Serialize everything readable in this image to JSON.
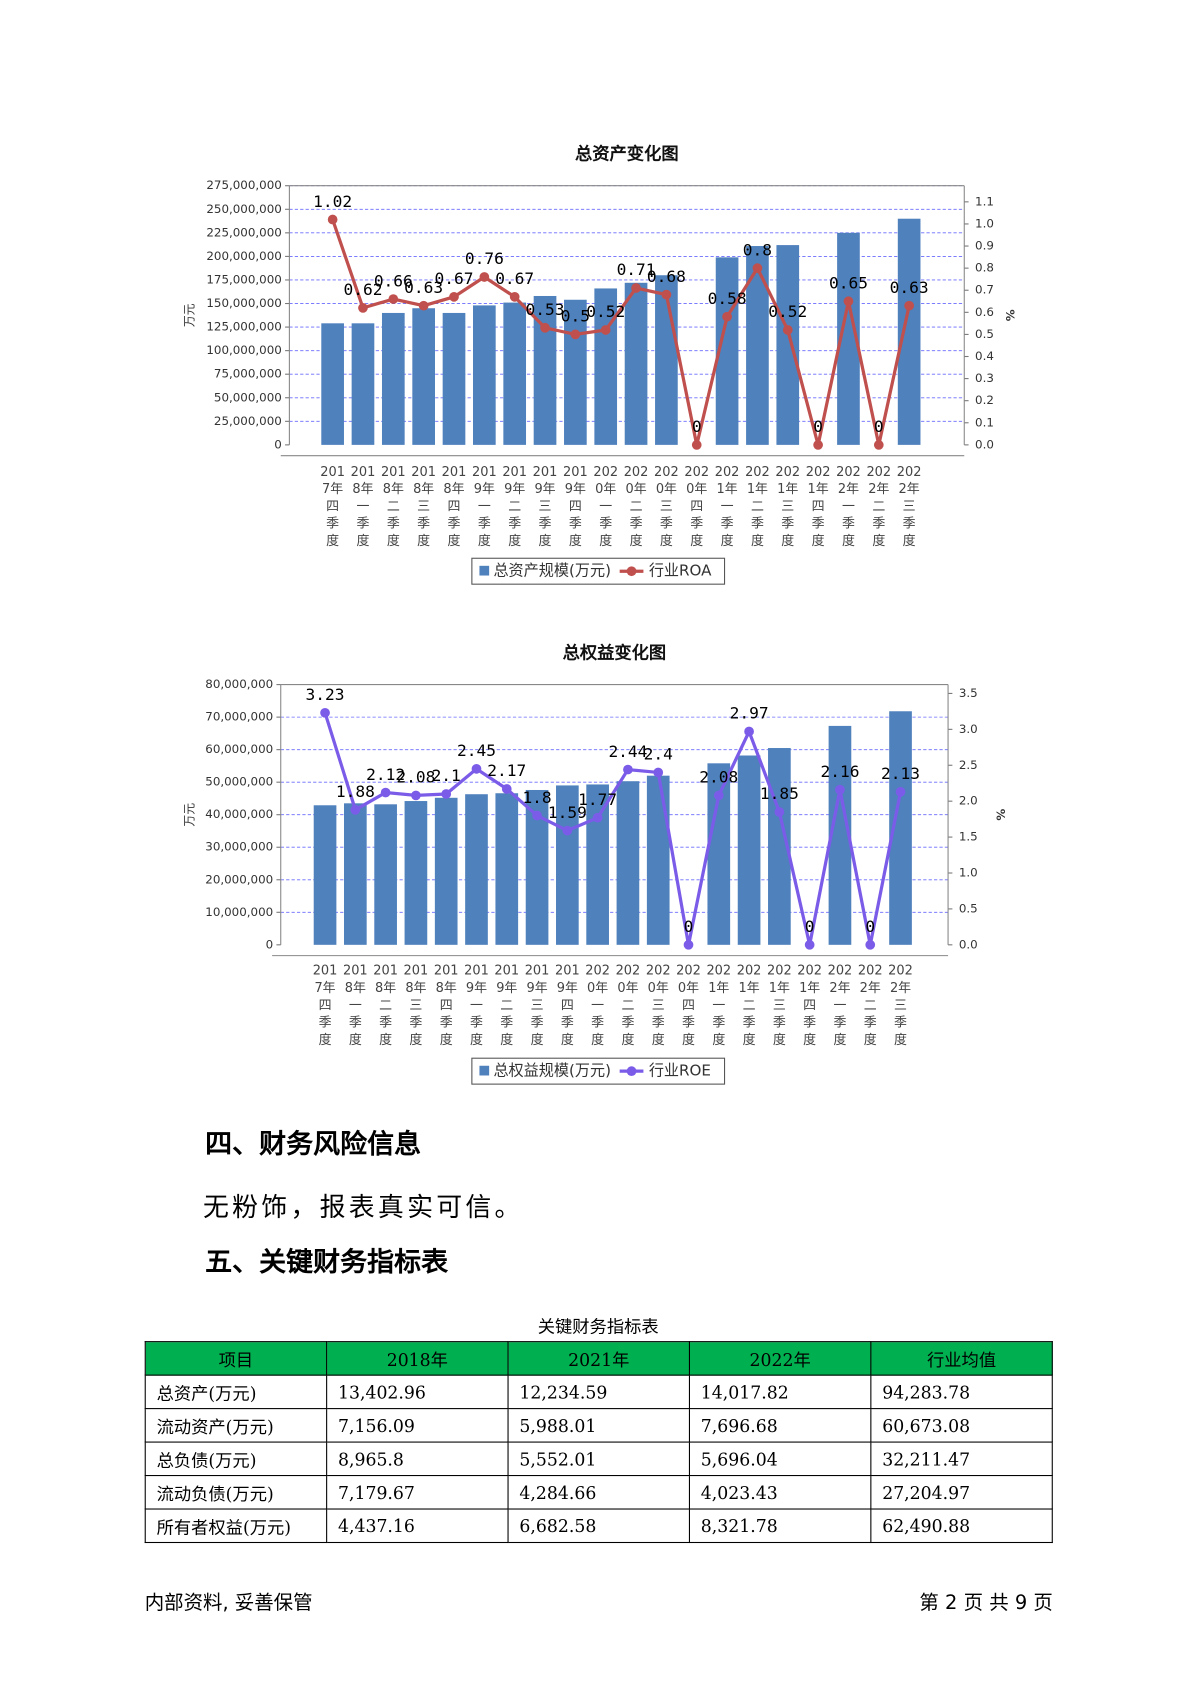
{
  "chart_data": [
    {
      "type": "bar",
      "title": "总资产变化图",
      "ylabel": "万元",
      "y2label": "%",
      "legend": "bottom",
      "grid": true,
      "categories": [
        "2017年四季度",
        "2018年一季度",
        "2018年二季度",
        "2018年三季度",
        "2018年四季度",
        "2019年一季度",
        "2019年二季度",
        "2019年三季度",
        "2019年四季度",
        "2020年一季度",
        "2020年二季度",
        "2020年三季度",
        "2020年四季度",
        "2021年一季度",
        "2021年二季度",
        "2021年三季度",
        "2021年四季度",
        "2022年一季度",
        "2022年二季度",
        "2022年三季度"
      ],
      "series": [
        {
          "name": "总资产规模(万元)",
          "type": "bar",
          "color": "#4f81bd",
          "values": [
            129000000,
            129000000,
            140000000,
            145000000,
            140000000,
            148000000,
            151000000,
            158000000,
            154000000,
            166000000,
            172000000,
            180000000,
            0,
            199000000,
            211000000,
            212000000,
            0,
            225000000,
            0,
            240000000
          ]
        },
        {
          "name": "行业ROA",
          "type": "line",
          "axis": "y2",
          "color": "#c0504d",
          "values": [
            1.02,
            0.62,
            0.66,
            0.63,
            0.67,
            0.76,
            0.67,
            0.53,
            0.5,
            0.52,
            0.71,
            0.68,
            0,
            0.58,
            0.8,
            0.52,
            0,
            0.65,
            0,
            0.63
          ]
        }
      ],
      "ylim": [
        0,
        275000000
      ],
      "yticks": [
        0,
        {
          "value": 25000000,
          "label": "25,000,000"
        },
        {
          "value": 50000000,
          "label": "50,000,000"
        },
        {
          "value": 75000000,
          "label": "75,000,000"
        },
        {
          "value": 100000000,
          "label": "100,000,000"
        },
        {
          "value": 125000000,
          "label": "125,000,000"
        },
        {
          "value": 150000000,
          "label": "150,000,000"
        },
        {
          "value": 175000000,
          "label": "175,000,000"
        },
        {
          "value": 200000000,
          "label": "200,000,000"
        },
        {
          "value": 225000000,
          "label": "225,000,000"
        },
        {
          "value": 250000000,
          "label": "250,000,000"
        },
        {
          "value": 275000000,
          "label": "275,000,000"
        }
      ],
      "y2lim": [
        0,
        1.173
      ],
      "y2ticks": [
        {
          "value": 0,
          "label": "0.0"
        },
        0.1,
        0.2,
        0.3,
        0.4,
        0.5,
        0.6,
        0.7,
        0.8,
        0.9,
        {
          "value": 1,
          "label": "1.0"
        },
        1.1
      ]
    },
    {
      "type": "bar",
      "title": "总权益变化图",
      "ylabel": "万元",
      "y2label": "%",
      "legend": "bottom",
      "grid": true,
      "categories": [
        "2017年四季度",
        "2018年一季度",
        "2018年二季度",
        "2018年三季度",
        "2018年四季度",
        "2019年一季度",
        "2019年二季度",
        "2019年三季度",
        "2019年四季度",
        "2020年一季度",
        "2020年二季度",
        "2020年三季度",
        "2020年四季度",
        "2021年一季度",
        "2021年二季度",
        "2021年三季度",
        "2021年四季度",
        "2022年一季度",
        "2022年二季度",
        "2022年三季度"
      ],
      "series": [
        {
          "name": "总权益规模(万元)",
          "type": "bar",
          "color": "#4f81bd",
          "values": [
            42900000,
            43500000,
            43200000,
            44200000,
            45200000,
            46300000,
            46600000,
            47600000,
            49000000,
            49300000,
            50300000,
            52000000,
            0,
            55800000,
            58200000,
            60500000,
            0,
            67300000,
            0,
            71800000
          ]
        },
        {
          "name": "行业ROE",
          "type": "line",
          "axis": "y2",
          "color": "#7b5ce8",
          "values": [
            3.23,
            1.88,
            2.12,
            2.08,
            2.1,
            2.45,
            2.17,
            1.8,
            1.59,
            1.77,
            2.44,
            2.4,
            0,
            2.08,
            2.97,
            1.85,
            0,
            2.16,
            0,
            2.13
          ]
        }
      ],
      "ylim": [
        0,
        80000000
      ],
      "yticks": [
        0,
        {
          "value": 10000000,
          "label": "10,000,000"
        },
        {
          "value": 20000000,
          "label": "20,000,000"
        },
        {
          "value": 30000000,
          "label": "30,000,000"
        },
        {
          "value": 40000000,
          "label": "40,000,000"
        },
        {
          "value": 50000000,
          "label": "50,000,000"
        },
        {
          "value": 60000000,
          "label": "60,000,000"
        },
        {
          "value": 70000000,
          "label": "70,000,000"
        },
        {
          "value": 80000000,
          "label": "80,000,000"
        }
      ],
      "y2lim": [
        0,
        3.623
      ],
      "y2ticks": [
        {
          "value": 0,
          "label": "0.0"
        },
        0.5,
        {
          "value": 1,
          "label": "1.0"
        },
        1.5,
        {
          "value": 2,
          "label": "2.0"
        },
        2.5,
        {
          "value": 3,
          "label": "3.0"
        },
        3.5
      ]
    }
  ],
  "sections": [
    {
      "heading": "四、财务风险信息",
      "text": "无粉饰，报表真实可信。"
    },
    {
      "heading": "五、关键财务指标表"
    }
  ],
  "table": {
    "caption": "关键财务指标表",
    "header": [
      "项目",
      "2018年",
      "2021年",
      "2022年",
      "行业均值"
    ],
    "rows": [
      [
        "总资产(万元)",
        "13,402.96",
        "12,234.59",
        "14,017.82",
        "94,283.78"
      ],
      [
        "流动资产(万元)",
        "7,156.09",
        "5,988.01",
        "7,696.68",
        "60,673.08"
      ],
      [
        "总负债(万元)",
        "8,965.8",
        "5,552.01",
        "5,696.04",
        "32,211.47"
      ],
      [
        "流动负债(万元)",
        "7,179.67",
        "4,284.66",
        "4,023.43",
        "27,204.97"
      ],
      [
        "所有者权益(万元)",
        "4,437.16",
        "6,682.58",
        "8,321.78",
        "62,490.88"
      ]
    ]
  },
  "footer": {
    "left": "内部资料, 妥善保管",
    "right": "第 2 页  共 9 页"
  }
}
